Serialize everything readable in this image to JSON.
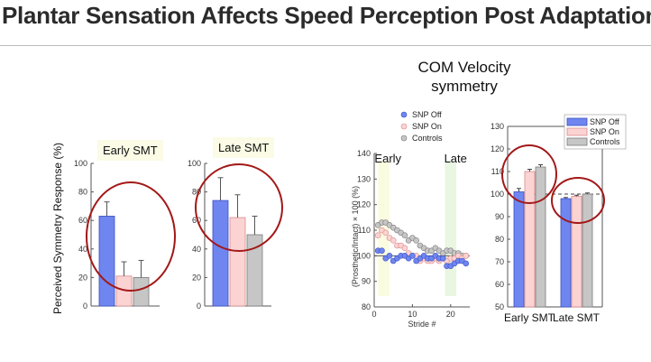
{
  "slide": {
    "title": "Plantar Sensation Affects Speed Perception Post Adaptation"
  },
  "colors": {
    "snp_off": "#6f86f0",
    "snp_on": "#fcd3d3",
    "controls": "#c6c6c6",
    "highlight_circle": "#a31818",
    "early_band": "#fbfbe1",
    "late_band": "#e9f6e2"
  },
  "chart_data": [
    {
      "type": "bar",
      "title": "",
      "panel_label": "Early SMT",
      "ylabel": "Perceived Symmetry Response (%)",
      "ylim": [
        0,
        100
      ],
      "yticks": [
        "0",
        "20",
        "40",
        "60",
        "80",
        "100"
      ],
      "categories": [
        "SNP Off",
        "SNP On",
        "Controls"
      ],
      "values": [
        63,
        21,
        20
      ],
      "errors": [
        10,
        10,
        12
      ]
    },
    {
      "type": "bar",
      "title": "",
      "panel_label": "Late SMT",
      "ylim": [
        0,
        100
      ],
      "yticks": [
        "0",
        "20",
        "40",
        "60",
        "80",
        "100"
      ],
      "categories": [
        "SNP Off",
        "SNP On",
        "Controls"
      ],
      "values": [
        74,
        62,
        50
      ],
      "errors": [
        16,
        16,
        13
      ]
    },
    {
      "type": "scatter",
      "title": "COM Velocity symmetry",
      "xlabel": "Stride #",
      "ylabel": "(Prosthetic/Intact) × 100 (%)",
      "xlim": [
        0,
        25
      ],
      "ylim": [
        80,
        140
      ],
      "xticks": [
        "0",
        "10",
        "20"
      ],
      "yticks": [
        "80",
        "90",
        "100",
        "110",
        "120",
        "130",
        "140"
      ],
      "annotations": [
        "Early",
        "Late"
      ],
      "legend": [
        "SNP Off",
        "SNP On",
        "Controls"
      ],
      "series": [
        {
          "name": "SNP Off",
          "x": [
            1,
            2,
            3,
            4,
            5,
            6,
            7,
            8,
            9,
            10,
            11,
            12,
            13,
            14,
            15,
            16,
            17,
            18,
            19,
            20,
            21,
            22,
            23,
            24
          ],
          "y": [
            102,
            102,
            99,
            100,
            98,
            99,
            100,
            100,
            99,
            100,
            98,
            99,
            100,
            99,
            99,
            100,
            99,
            99,
            96,
            96,
            97,
            98,
            98,
            97
          ]
        },
        {
          "name": "SNP On",
          "x": [
            1,
            2,
            3,
            4,
            5,
            6,
            7,
            8,
            9,
            10,
            11,
            12,
            13,
            14,
            15,
            16,
            17,
            18,
            19,
            20,
            21,
            22,
            23,
            24
          ],
          "y": [
            108,
            110,
            109,
            107,
            106,
            104,
            104,
            103,
            101,
            100,
            100,
            98,
            99,
            98,
            98,
            99,
            98,
            99,
            98,
            99,
            99,
            100,
            99,
            100
          ]
        },
        {
          "name": "Controls",
          "x": [
            1,
            2,
            3,
            4,
            5,
            6,
            7,
            8,
            9,
            10,
            11,
            12,
            13,
            14,
            15,
            16,
            17,
            18,
            19,
            20,
            21,
            22,
            23,
            24
          ],
          "y": [
            112,
            113,
            113,
            112,
            111,
            110,
            109,
            108,
            106,
            107,
            106,
            104,
            103,
            102,
            102,
            103,
            102,
            101,
            102,
            102,
            101,
            101,
            100,
            100
          ]
        }
      ]
    },
    {
      "type": "bar",
      "title": "",
      "ylim": [
        50,
        130
      ],
      "yticks": [
        "50",
        "60",
        "70",
        "80",
        "90",
        "100",
        "110",
        "120",
        "130"
      ],
      "categories": [
        "Early SMT",
        "Late SMT"
      ],
      "legend": [
        "SNP Off",
        "SNP On",
        "Controls"
      ],
      "reference_line": 100,
      "series": [
        {
          "name": "SNP Off",
          "values": [
            101,
            98
          ],
          "errors": [
            1.5,
            0.5
          ]
        },
        {
          "name": "SNP On",
          "values": [
            110,
            99
          ],
          "errors": [
            1,
            0.5
          ]
        },
        {
          "name": "Controls",
          "values": [
            112,
            100
          ],
          "errors": [
            1,
            0.5
          ]
        }
      ]
    }
  ]
}
